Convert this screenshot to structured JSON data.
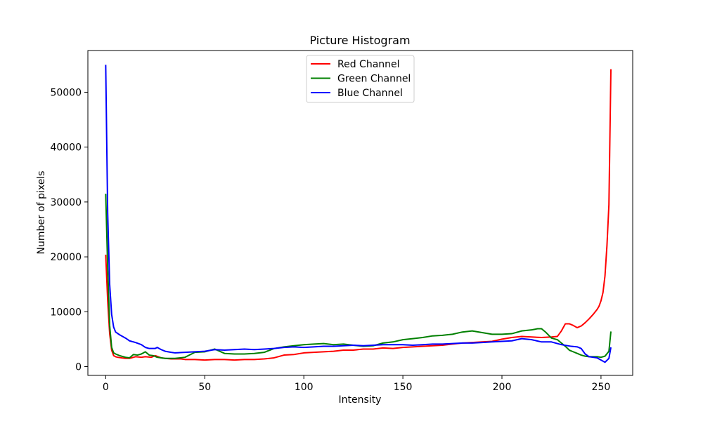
{
  "chart_data": {
    "type": "line",
    "title": "Picture Histogram",
    "xlabel": "Intensity",
    "ylabel": "Number of pixels",
    "xlim": [
      -9,
      266
    ],
    "ylim": [
      -1600,
      57600
    ],
    "xticks": [
      0,
      50,
      100,
      150,
      200,
      250
    ],
    "yticks": [
      0,
      10000,
      20000,
      30000,
      40000,
      50000
    ],
    "grid": false,
    "legend_position": "top-center",
    "series": [
      {
        "name": "Red Channel",
        "color": "#ff0000",
        "points": [
          [
            0,
            20400
          ],
          [
            1,
            12000
          ],
          [
            2,
            6000
          ],
          [
            3,
            3000
          ],
          [
            4,
            2000
          ],
          [
            5,
            1800
          ],
          [
            6,
            1700
          ],
          [
            8,
            1600
          ],
          [
            10,
            1500
          ],
          [
            12,
            1500
          ],
          [
            15,
            1800
          ],
          [
            18,
            1700
          ],
          [
            20,
            1800
          ],
          [
            23,
            1700
          ],
          [
            25,
            2000
          ],
          [
            28,
            1600
          ],
          [
            30,
            1500
          ],
          [
            33,
            1400
          ],
          [
            35,
            1400
          ],
          [
            38,
            1400
          ],
          [
            40,
            1300
          ],
          [
            45,
            1300
          ],
          [
            50,
            1200
          ],
          [
            55,
            1300
          ],
          [
            60,
            1300
          ],
          [
            65,
            1200
          ],
          [
            70,
            1300
          ],
          [
            75,
            1300
          ],
          [
            80,
            1400
          ],
          [
            85,
            1600
          ],
          [
            90,
            2100
          ],
          [
            95,
            2200
          ],
          [
            100,
            2500
          ],
          [
            105,
            2600
          ],
          [
            110,
            2700
          ],
          [
            115,
            2800
          ],
          [
            120,
            3000
          ],
          [
            125,
            3000
          ],
          [
            130,
            3200
          ],
          [
            135,
            3200
          ],
          [
            140,
            3400
          ],
          [
            145,
            3300
          ],
          [
            150,
            3500
          ],
          [
            155,
            3600
          ],
          [
            160,
            3700
          ],
          [
            165,
            3800
          ],
          [
            170,
            3900
          ],
          [
            175,
            4100
          ],
          [
            180,
            4300
          ],
          [
            185,
            4400
          ],
          [
            190,
            4500
          ],
          [
            195,
            4600
          ],
          [
            200,
            5000
          ],
          [
            205,
            5300
          ],
          [
            210,
            5500
          ],
          [
            215,
            5400
          ],
          [
            220,
            5300
          ],
          [
            225,
            5400
          ],
          [
            228,
            5500
          ],
          [
            230,
            6500
          ],
          [
            232,
            7800
          ],
          [
            234,
            7800
          ],
          [
            236,
            7500
          ],
          [
            238,
            7100
          ],
          [
            240,
            7400
          ],
          [
            242,
            8000
          ],
          [
            244,
            8700
          ],
          [
            246,
            9500
          ],
          [
            248,
            10400
          ],
          [
            249,
            11000
          ],
          [
            250,
            12000
          ],
          [
            251,
            13500
          ],
          [
            252,
            16500
          ],
          [
            253,
            22000
          ],
          [
            254,
            29500
          ],
          [
            255,
            54200
          ]
        ]
      },
      {
        "name": "Green Channel",
        "color": "#008000",
        "points": [
          [
            0,
            31500
          ],
          [
            1,
            18000
          ],
          [
            2,
            7500
          ],
          [
            3,
            3500
          ],
          [
            4,
            2500
          ],
          [
            5,
            2300
          ],
          [
            7,
            2000
          ],
          [
            10,
            1700
          ],
          [
            12,
            1600
          ],
          [
            14,
            2200
          ],
          [
            16,
            2100
          ],
          [
            18,
            2300
          ],
          [
            20,
            2700
          ],
          [
            22,
            2100
          ],
          [
            24,
            2000
          ],
          [
            26,
            1700
          ],
          [
            28,
            1600
          ],
          [
            30,
            1500
          ],
          [
            35,
            1500
          ],
          [
            40,
            1700
          ],
          [
            45,
            2600
          ],
          [
            50,
            2700
          ],
          [
            55,
            3200
          ],
          [
            60,
            2400
          ],
          [
            65,
            2300
          ],
          [
            70,
            2300
          ],
          [
            75,
            2400
          ],
          [
            80,
            2600
          ],
          [
            85,
            3300
          ],
          [
            90,
            3600
          ],
          [
            95,
            3800
          ],
          [
            100,
            4000
          ],
          [
            105,
            4100
          ],
          [
            110,
            4200
          ],
          [
            115,
            4000
          ],
          [
            120,
            4100
          ],
          [
            125,
            3900
          ],
          [
            130,
            3700
          ],
          [
            135,
            3800
          ],
          [
            140,
            4300
          ],
          [
            145,
            4500
          ],
          [
            150,
            4900
          ],
          [
            155,
            5100
          ],
          [
            160,
            5300
          ],
          [
            165,
            5600
          ],
          [
            170,
            5700
          ],
          [
            175,
            5900
          ],
          [
            180,
            6300
          ],
          [
            185,
            6500
          ],
          [
            190,
            6200
          ],
          [
            195,
            5900
          ],
          [
            200,
            5900
          ],
          [
            205,
            6000
          ],
          [
            210,
            6500
          ],
          [
            215,
            6700
          ],
          [
            218,
            6900
          ],
          [
            220,
            6900
          ],
          [
            222,
            6300
          ],
          [
            225,
            5200
          ],
          [
            228,
            4900
          ],
          [
            230,
            4300
          ],
          [
            232,
            3700
          ],
          [
            234,
            3000
          ],
          [
            236,
            2700
          ],
          [
            238,
            2400
          ],
          [
            240,
            2100
          ],
          [
            242,
            1900
          ],
          [
            244,
            1800
          ],
          [
            246,
            1800
          ],
          [
            248,
            1800
          ],
          [
            250,
            1700
          ],
          [
            252,
            1900
          ],
          [
            254,
            2800
          ],
          [
            255,
            6400
          ]
        ]
      },
      {
        "name": "Blue Channel",
        "color": "#0000ff",
        "points": [
          [
            0,
            55000
          ],
          [
            1,
            28000
          ],
          [
            2,
            15000
          ],
          [
            3,
            9500
          ],
          [
            4,
            7200
          ],
          [
            5,
            6300
          ],
          [
            7,
            5800
          ],
          [
            10,
            5200
          ],
          [
            12,
            4700
          ],
          [
            15,
            4400
          ],
          [
            18,
            4000
          ],
          [
            20,
            3500
          ],
          [
            22,
            3300
          ],
          [
            25,
            3300
          ],
          [
            26,
            3500
          ],
          [
            28,
            3100
          ],
          [
            30,
            2800
          ],
          [
            33,
            2600
          ],
          [
            35,
            2500
          ],
          [
            40,
            2600
          ],
          [
            45,
            2700
          ],
          [
            50,
            2800
          ],
          [
            55,
            3100
          ],
          [
            60,
            3000
          ],
          [
            65,
            3100
          ],
          [
            70,
            3200
          ],
          [
            75,
            3100
          ],
          [
            80,
            3200
          ],
          [
            85,
            3300
          ],
          [
            90,
            3500
          ],
          [
            95,
            3600
          ],
          [
            100,
            3500
          ],
          [
            105,
            3600
          ],
          [
            110,
            3700
          ],
          [
            115,
            3700
          ],
          [
            120,
            3800
          ],
          [
            125,
            3900
          ],
          [
            130,
            3800
          ],
          [
            135,
            3900
          ],
          [
            140,
            4000
          ],
          [
            145,
            4000
          ],
          [
            150,
            4000
          ],
          [
            155,
            3900
          ],
          [
            160,
            4000
          ],
          [
            165,
            4100
          ],
          [
            170,
            4100
          ],
          [
            175,
            4200
          ],
          [
            180,
            4300
          ],
          [
            185,
            4300
          ],
          [
            190,
            4400
          ],
          [
            195,
            4500
          ],
          [
            200,
            4600
          ],
          [
            205,
            4700
          ],
          [
            210,
            5100
          ],
          [
            215,
            4900
          ],
          [
            220,
            4500
          ],
          [
            225,
            4500
          ],
          [
            230,
            4000
          ],
          [
            235,
            3700
          ],
          [
            238,
            3600
          ],
          [
            240,
            3300
          ],
          [
            242,
            2300
          ],
          [
            244,
            1800
          ],
          [
            246,
            1700
          ],
          [
            248,
            1600
          ],
          [
            250,
            1200
          ],
          [
            252,
            800
          ],
          [
            254,
            1500
          ],
          [
            255,
            3500
          ]
        ]
      }
    ]
  }
}
